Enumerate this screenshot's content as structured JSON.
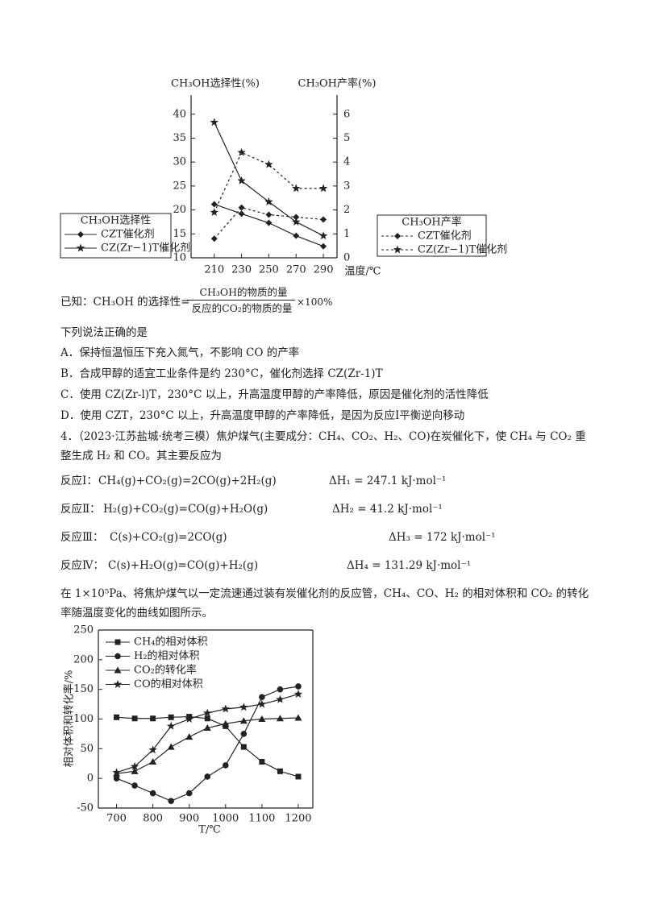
{
  "chart_data": [
    {
      "type": "line",
      "x": [
        210,
        230,
        250,
        270,
        290
      ],
      "xlim": [
        193,
        300
      ],
      "xticks": [
        210,
        230,
        250,
        270,
        290
      ],
      "xlabel": "温度/℃",
      "ylabel": "CH₃OH选择性(%)",
      "ylim": [
        10,
        44
      ],
      "yticks": [
        10,
        15,
        20,
        25,
        30,
        35,
        40
      ],
      "y2label": "CH₃OH产率(%)",
      "y2lim": [
        0,
        6.8
      ],
      "y2ticks": [
        0,
        1,
        2,
        3,
        4,
        5,
        6
      ],
      "legend_title": "CH₃OH选择性",
      "legend2_title": "CH₃OH产率",
      "series": [
        {
          "name": "CZT催化剂",
          "color": "#222222",
          "marker": "diamond",
          "line_style": "solid",
          "values": [
            21.2,
            19.2,
            17.3,
            14.6,
            12.4
          ]
        },
        {
          "name": "CZ(Zr−1)T催化剂",
          "color": "#222222",
          "marker": "star",
          "line_style": "solid",
          "values": [
            38.3,
            26.1,
            21.7,
            17.5,
            14.6
          ]
        },
        {
          "name": "CZT催化剂",
          "color": "#222222",
          "marker": "diamond",
          "line_style": "dashed",
          "axis": "y2",
          "values": [
            0.8,
            2.1,
            1.8,
            1.7,
            1.6
          ]
        },
        {
          "name": "CZ(Zr−1)T催化剂",
          "color": "#222222",
          "marker": "star",
          "line_style": "dashed",
          "axis": "y2",
          "values": [
            1.9,
            4.4,
            3.9,
            2.9,
            2.9
          ]
        }
      ]
    },
    {
      "type": "line",
      "x": [
        700,
        750,
        800,
        850,
        900,
        950,
        1000,
        1050,
        1100,
        1150,
        1200
      ],
      "xlim": [
        650,
        1240
      ],
      "xticks": [
        700,
        800,
        900,
        1000,
        1100,
        1200
      ],
      "xlabel": "T/℃",
      "ylabel": "相对体积和转化率/%",
      "ylim": [
        -50,
        250
      ],
      "yticks": [
        -50,
        0,
        50,
        100,
        150,
        200,
        250
      ],
      "series": [
        {
          "name": "CH₄的相对体积",
          "color": "#222222",
          "marker": "square",
          "line_style": "solid",
          "values": [
            103,
            101,
            101,
            103,
            104,
            101,
            88,
            53,
            28,
            12,
            3
          ]
        },
        {
          "name": "H₂的相对体积",
          "color": "#222222",
          "marker": "circle",
          "line_style": "solid",
          "values": [
            0,
            -12,
            -25,
            -38,
            -25,
            3,
            22,
            75,
            137,
            150,
            155
          ]
        },
        {
          "name": "CO₂的转化率",
          "color": "#222222",
          "marker": "triangle",
          "line_style": "solid",
          "values": [
            8,
            12,
            28,
            53,
            70,
            85,
            92,
            97,
            100,
            101,
            102
          ]
        },
        {
          "name": "CO的相对体积",
          "color": "#222222",
          "marker": "star",
          "line_style": "solid",
          "values": [
            10,
            20,
            48,
            88,
            100,
            110,
            117,
            120,
            125,
            133,
            142
          ]
        }
      ]
    }
  ],
  "document": {
    "definition": {
      "prefix": "已知：CH₃OH 的选择性=",
      "numerator": "CH₃OH的物质的量",
      "denominator": "反应的CO₂的物质的量",
      "suffix": "×100%"
    },
    "question_prompt": "下列说法正确的是",
    "options": [
      "A．保持恒温恒压下充入氮气，不影响 CO 的产率",
      "B．合成甲醇的适宜工业条件是约 230°C，催化剂选择 CZ(Zr-1)T",
      "C．使用 CZ(Zr-l)T，230°C 以上，升高温度甲醇的产率降低，原因是催化剂的活性降低",
      "D．使用 CZT，230°C 以上，升高温度甲醇的产率降低，是因为反应Ⅰ平衡逆向移动"
    ],
    "question4": [
      "4．（2023·江苏盐城·统考三模）焦炉煤气(主要成分：CH₄、CO₂、H₂、CO)在炭催化下，使 CH₄ 与 CO₂ 重",
      "整生成 H₂ 和 CO。其主要反应为"
    ],
    "reactions": [
      {
        "label": "反应Ⅰ：",
        "equation": "CH₄(g)+CO₂(g)=2CO(g)+2H₂(g)",
        "enthalpy": "ΔH₁ = 247.1 kJ·mol⁻¹"
      },
      {
        "label": "反应Ⅱ：",
        "equation": "H₂(g)+CO₂(g)=CO(g)+H₂O(g)",
        "enthalpy": "ΔH₂ = 41.2 kJ·mol⁻¹"
      },
      {
        "label": "反应Ⅲ：",
        "equation": "C(s)+CO₂(g)=2CO(g)",
        "enthalpy": "ΔH₃ = 172 kJ·mol⁻¹"
      },
      {
        "label": "反应Ⅳ：",
        "equation": "C(s)+H₂O(g)=CO(g)+H₂(g)",
        "enthalpy": "ΔH₄ = 131.29 kJ·mol⁻¹"
      }
    ],
    "conditions": [
      "在 1×10⁵Pa、将焦炉煤气以一定流速通过装有炭催化剂的反应管，CH₄、CO、H₂ 的相对体积和 CO₂ 的转化",
      "率随温度变化的曲线如图所示。"
    ]
  }
}
